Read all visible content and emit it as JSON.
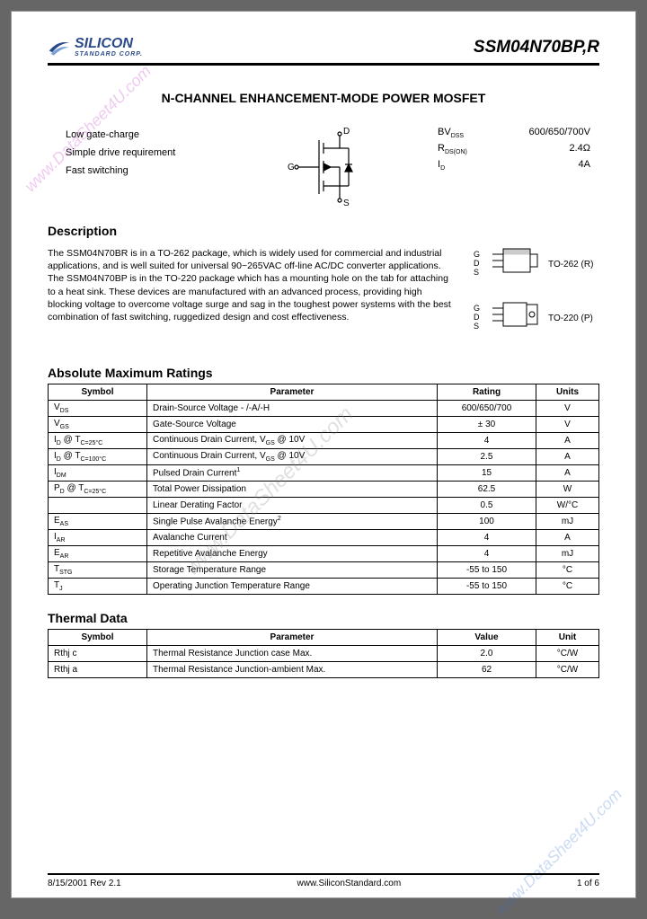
{
  "header": {
    "company": "SILICON",
    "company_sub": "STANDARD CORP.",
    "part": "SSM04N70BP,R"
  },
  "title": "N-CHANNEL ENHANCEMENT-MODE POWER MOSFET",
  "features": [
    "Low gate-charge",
    "Simple drive requirement",
    "Fast switching"
  ],
  "mosfet": {
    "d": "D",
    "g": "G",
    "s": "S"
  },
  "elec": {
    "bvdss_label": "BV",
    "bvdss_sub": "DSS",
    "bvdss_val": "600/650/700V",
    "rds_label": "R",
    "rds_sub": "DS(ON)",
    "rds_val": "2.4Ω",
    "id_label": "I",
    "id_sub": "D",
    "id_val": "4A"
  },
  "description": {
    "heading": "Description",
    "text": "The SSM04N70BR is in a TO-262 package, which is widely used for commercial and industrial applications, and is well suited for universal 90~265VAC off-line AC/DC converter applications. The SSM04N70BP is in the TO-220 package which has a mounting hole on the tab for attaching to a heat sink. These devices are manufactured with an advanced process, providing high blocking voltage to overcome voltage surge and sag in the toughest power systems with the best combination of fast switching, ruggedized design and cost effectiveness."
  },
  "packages": [
    {
      "pins": "G\nD\nS",
      "label": "TO-262 (R)"
    },
    {
      "pins": "G\nD\nS",
      "label": "TO-220 (P)"
    }
  ],
  "abs_max": {
    "heading": "Absolute Maximum Ratings",
    "columns": [
      "Symbol",
      "Parameter",
      "Rating",
      "Units"
    ],
    "rows": [
      [
        "V_DS",
        "Drain-Source Voltage                             - /-A/-H",
        "600/650/700",
        "V"
      ],
      [
        "V_GS",
        "Gate-Source Voltage",
        "± 30",
        "V"
      ],
      [
        "I_D @ T_C=25°C",
        "Continuous Drain Current, V_GS @ 10V",
        "4",
        "A"
      ],
      [
        "I_D @ T_C=100°C",
        "Continuous Drain Current, V_GS @ 10V",
        "2.5",
        "A"
      ],
      [
        "I_DM",
        "Pulsed Drain Current¹",
        "15",
        "A"
      ],
      [
        "P_D @ T_C=25°C",
        "Total Power Dissipation",
        "62.5",
        "W"
      ],
      [
        "",
        "Linear Derating Factor",
        "0.5",
        "W/°C"
      ],
      [
        "E_AS",
        "Single Pulse Avalanche Energy²",
        "100",
        "mJ"
      ],
      [
        "I_AR",
        "Avalanche Current",
        "4",
        "A"
      ],
      [
        "E_AR",
        "Repetitive Avalanche Energy",
        "4",
        "mJ"
      ],
      [
        "T_STG",
        "Storage Temperature Range",
        "-55 to 150",
        "°C"
      ],
      [
        "T_J",
        "Operating Junction Temperature Range",
        "-55 to 150",
        "°C"
      ]
    ]
  },
  "thermal": {
    "heading": "Thermal Data",
    "columns": [
      "Symbol",
      "Parameter",
      "Value",
      "Unit"
    ],
    "rows": [
      [
        "Rthj c",
        "Thermal Resistance Junction case                       Max.",
        "2.0",
        "°C/W"
      ],
      [
        "Rthj a",
        "Thermal Resistance Junction-ambient                  Max.",
        "62",
        "°C/W"
      ]
    ]
  },
  "footer": {
    "left": "8/15/2001  Rev 2.1",
    "center": "www.SiliconStandard.com",
    "right": "1 of 6"
  },
  "watermarks": {
    "wm1": "www.DataSheet4U.com",
    "wm2": "www.DataSheet4U.com",
    "wm3": "www.DataSheet4U.com"
  },
  "style": {
    "brand_color": "#2a4a8a",
    "border_color": "#000000",
    "col_widths": {
      "sym": "110px",
      "param": "auto",
      "rating": "110px",
      "units": "70px"
    }
  }
}
